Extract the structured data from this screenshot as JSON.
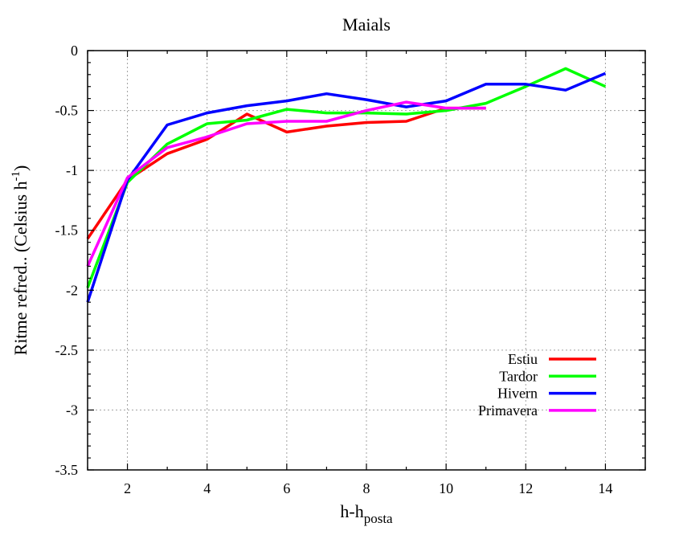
{
  "chart_data": {
    "type": "line",
    "title": "Maials",
    "xlabel_main": "h-h",
    "xlabel_sub": "posta",
    "ylabel_main": "Ritme refred.. (Celsius h",
    "ylabel_sup": "-1",
    "ylabel_end": ")",
    "xlim": [
      1,
      15
    ],
    "ylim": [
      -3.5,
      0
    ],
    "xticks": [
      2,
      4,
      6,
      8,
      10,
      12,
      14
    ],
    "yticks": [
      0,
      -0.5,
      -1,
      -1.5,
      -2,
      -2.5,
      -3,
      -3.5
    ],
    "grid": true,
    "legend_position": "bottom-right",
    "series": [
      {
        "name": "Estiu",
        "color": "#ff0000",
        "x": [
          1,
          2,
          3,
          4,
          5,
          6,
          7,
          8,
          9,
          10,
          11
        ],
        "y": [
          -1.57,
          -1.08,
          -0.86,
          -0.74,
          -0.53,
          -0.68,
          -0.63,
          -0.6,
          -0.59,
          -0.48,
          -0.48
        ]
      },
      {
        "name": "Tardor",
        "color": "#00ff00",
        "x": [
          1,
          2,
          3,
          4,
          5,
          6,
          7,
          8,
          9,
          10,
          11,
          12,
          13,
          14
        ],
        "y": [
          -1.98,
          -1.1,
          -0.78,
          -0.61,
          -0.58,
          -0.49,
          -0.52,
          -0.52,
          -0.53,
          -0.5,
          -0.44,
          -0.3,
          -0.15,
          -0.3
        ]
      },
      {
        "name": "Hivern",
        "color": "#0000ff",
        "x": [
          1,
          2,
          3,
          4,
          5,
          6,
          7,
          8,
          9,
          10,
          11,
          12,
          13,
          14
        ],
        "y": [
          -2.1,
          -1.08,
          -0.62,
          -0.52,
          -0.46,
          -0.42,
          -0.36,
          -0.41,
          -0.47,
          -0.42,
          -0.28,
          -0.28,
          -0.33,
          -0.19
        ]
      },
      {
        "name": "Primavera",
        "color": "#ff00ff",
        "x": [
          1,
          2,
          3,
          4,
          5,
          6,
          7,
          8,
          9,
          10,
          11
        ],
        "y": [
          -1.8,
          -1.06,
          -0.81,
          -0.72,
          -0.61,
          -0.59,
          -0.59,
          -0.5,
          -0.43,
          -0.48,
          -0.48
        ]
      }
    ]
  }
}
